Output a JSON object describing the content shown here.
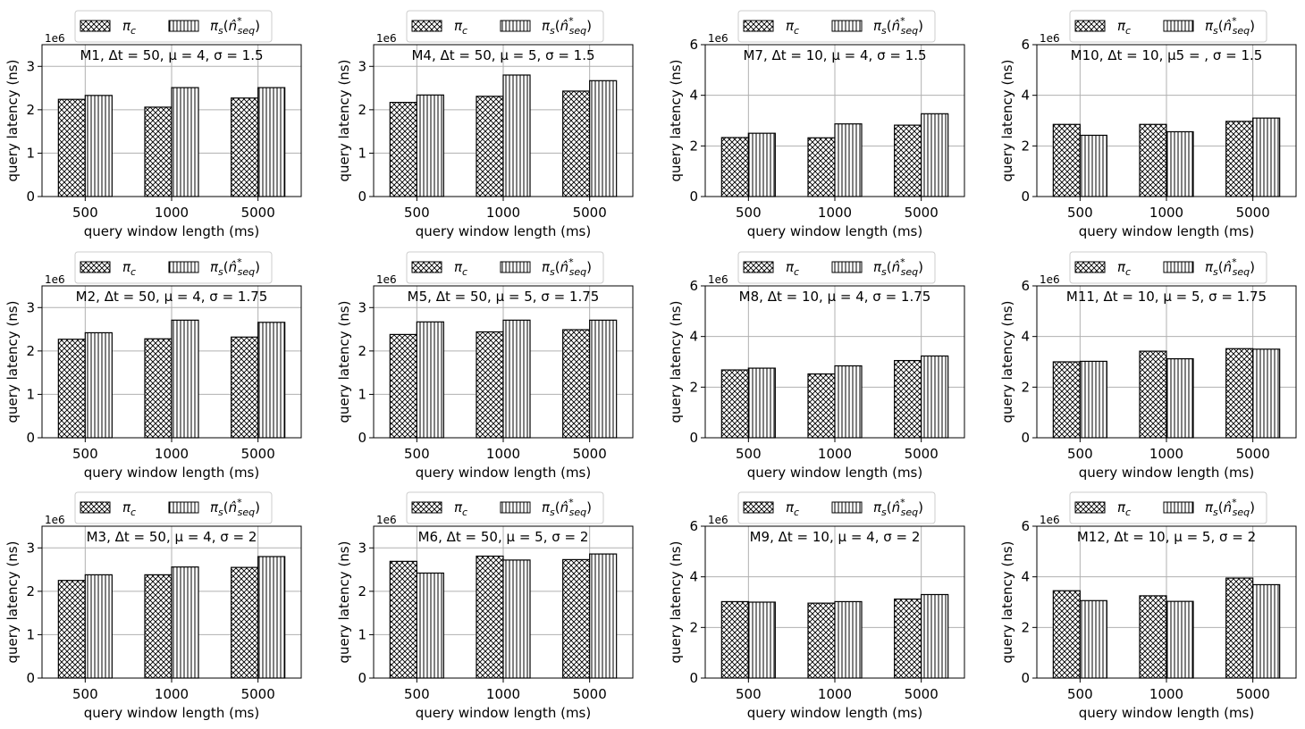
{
  "chart_data": [
    {
      "type": "bar",
      "title": "M1, Δt = 50, μ = 4, σ = 1.5",
      "xlabel": "query window length (ms)",
      "ylabel": "query latency (ns)",
      "scale_label": "1e6",
      "categories": [
        "500",
        "1000",
        "5000"
      ],
      "ylim": [
        0,
        3.5
      ],
      "yticks": [
        "0",
        "1",
        "2",
        "3"
      ],
      "series": [
        {
          "name": "πc",
          "values": [
            2.24,
            2.06,
            2.27
          ]
        },
        {
          "name": "πs(n̂*seq)",
          "values": [
            2.33,
            2.51,
            2.51
          ]
        }
      ]
    },
    {
      "type": "bar",
      "title": "M4, Δt = 50, μ = 5, σ = 1.5",
      "xlabel": "query window length (ms)",
      "ylabel": "query latency (ns)",
      "scale_label": "1e6",
      "categories": [
        "500",
        "1000",
        "5000"
      ],
      "ylim": [
        0,
        3.5
      ],
      "yticks": [
        "0",
        "1",
        "2",
        "3"
      ],
      "series": [
        {
          "name": "πc",
          "values": [
            2.17,
            2.31,
            2.43
          ]
        },
        {
          "name": "πs(n̂*seq)",
          "values": [
            2.34,
            2.8,
            2.67
          ]
        }
      ]
    },
    {
      "type": "bar",
      "title": "M7, Δt = 10, μ = 4, σ = 1.5",
      "xlabel": "query window length (ms)",
      "ylabel": "query latency (ns)",
      "scale_label": "1e6",
      "categories": [
        "500",
        "1000",
        "5000"
      ],
      "ylim": [
        0,
        6
      ],
      "yticks": [
        "0",
        "2",
        "4",
        "6"
      ],
      "series": [
        {
          "name": "πc",
          "values": [
            2.33,
            2.32,
            2.82
          ]
        },
        {
          "name": "πs(n̂*seq)",
          "values": [
            2.5,
            2.87,
            3.27
          ]
        }
      ]
    },
    {
      "type": "bar",
      "title": "M10, Δt = 10, μ5 = , σ = 1.5",
      "xlabel": "query window length (ms)",
      "ylabel": "query latency (ns)",
      "scale_label": "1e6",
      "categories": [
        "500",
        "1000",
        "5000"
      ],
      "ylim": [
        0,
        6
      ],
      "yticks": [
        "0",
        "2",
        "4",
        "6"
      ],
      "series": [
        {
          "name": "πc",
          "values": [
            2.85,
            2.85,
            2.97
          ]
        },
        {
          "name": "πs(n̂*seq)",
          "values": [
            2.42,
            2.56,
            3.1
          ]
        }
      ]
    },
    {
      "type": "bar",
      "title": "M2, Δt = 50, μ = 4, σ = 1.75",
      "xlabel": "query window length (ms)",
      "ylabel": "query latency (ns)",
      "scale_label": "1e6",
      "categories": [
        "500",
        "1000",
        "5000"
      ],
      "ylim": [
        0,
        3.5
      ],
      "yticks": [
        "0",
        "1",
        "2",
        "3"
      ],
      "series": [
        {
          "name": "πc",
          "values": [
            2.27,
            2.28,
            2.32
          ]
        },
        {
          "name": "πs(n̂*seq)",
          "values": [
            2.42,
            2.71,
            2.66
          ]
        }
      ]
    },
    {
      "type": "bar",
      "title": "M5, Δt = 50, μ = 5, σ = 1.75",
      "xlabel": "query window length (ms)",
      "ylabel": "query latency (ns)",
      "scale_label": "1e6",
      "categories": [
        "500",
        "1000",
        "5000"
      ],
      "ylim": [
        0,
        3.5
      ],
      "yticks": [
        "0",
        "1",
        "2",
        "3"
      ],
      "series": [
        {
          "name": "πc",
          "values": [
            2.38,
            2.44,
            2.49
          ]
        },
        {
          "name": "πs(n̂*seq)",
          "values": [
            2.67,
            2.71,
            2.71
          ]
        }
      ]
    },
    {
      "type": "bar",
      "title": "M8, Δt = 10, μ = 4, σ = 1.75",
      "xlabel": "query window length (ms)",
      "ylabel": "query latency (ns)",
      "scale_label": "1e6",
      "categories": [
        "500",
        "1000",
        "5000"
      ],
      "ylim": [
        0,
        6
      ],
      "yticks": [
        "0",
        "2",
        "4",
        "6"
      ],
      "series": [
        {
          "name": "πc",
          "values": [
            2.68,
            2.52,
            3.05
          ]
        },
        {
          "name": "πs(n̂*seq)",
          "values": [
            2.75,
            2.84,
            3.23
          ]
        }
      ]
    },
    {
      "type": "bar",
      "title": "M11, Δt = 10, μ = 5, σ = 1.75",
      "xlabel": "query window length (ms)",
      "ylabel": "query latency (ns)",
      "scale_label": "1e6",
      "categories": [
        "500",
        "1000",
        "5000"
      ],
      "ylim": [
        0,
        6
      ],
      "yticks": [
        "0",
        "2",
        "4",
        "6"
      ],
      "series": [
        {
          "name": "πc",
          "values": [
            3.0,
            3.42,
            3.52
          ]
        },
        {
          "name": "πs(n̂*seq)",
          "values": [
            3.02,
            3.12,
            3.5
          ]
        }
      ]
    },
    {
      "type": "bar",
      "title": "M3, Δt = 50, μ = 4, σ = 2",
      "xlabel": "query window length (ms)",
      "ylabel": "query latency (ns)",
      "scale_label": "1e6",
      "categories": [
        "500",
        "1000",
        "5000"
      ],
      "ylim": [
        0,
        3.5
      ],
      "yticks": [
        "0",
        "1",
        "2",
        "3"
      ],
      "series": [
        {
          "name": "πc",
          "values": [
            2.25,
            2.38,
            2.55
          ]
        },
        {
          "name": "πs(n̂*seq)",
          "values": [
            2.38,
            2.56,
            2.8
          ]
        }
      ]
    },
    {
      "type": "bar",
      "title": "M6, Δt = 50, μ = 5, σ = 2",
      "xlabel": "query window length (ms)",
      "ylabel": "query latency (ns)",
      "scale_label": "1e6",
      "categories": [
        "500",
        "1000",
        "5000"
      ],
      "ylim": [
        0,
        3.5
      ],
      "yticks": [
        "0",
        "1",
        "2",
        "3"
      ],
      "series": [
        {
          "name": "πc",
          "values": [
            2.69,
            2.81,
            2.73
          ]
        },
        {
          "name": "πs(n̂*seq)",
          "values": [
            2.42,
            2.72,
            2.86
          ]
        }
      ]
    },
    {
      "type": "bar",
      "title": "M9, Δt = 10, μ = 4, σ = 2",
      "xlabel": "query window length (ms)",
      "ylabel": "query latency (ns)",
      "scale_label": "1e6",
      "categories": [
        "500",
        "1000",
        "5000"
      ],
      "ylim": [
        0,
        6
      ],
      "yticks": [
        "0",
        "2",
        "4",
        "6"
      ],
      "series": [
        {
          "name": "πc",
          "values": [
            3.02,
            2.96,
            3.12
          ]
        },
        {
          "name": "πs(n̂*seq)",
          "values": [
            3.0,
            3.02,
            3.3
          ]
        }
      ]
    },
    {
      "type": "bar",
      "title": "M12, Δt = 10, μ = 5, σ = 2",
      "xlabel": "query window length (ms)",
      "ylabel": "query latency (ns)",
      "scale_label": "1e6",
      "categories": [
        "500",
        "1000",
        "5000"
      ],
      "ylim": [
        0,
        6
      ],
      "yticks": [
        "0",
        "2",
        "4",
        "6"
      ],
      "series": [
        {
          "name": "πc",
          "values": [
            3.45,
            3.25,
            3.95
          ]
        },
        {
          "name": "πs(n̂*seq)",
          "values": [
            3.06,
            3.03,
            3.69
          ]
        }
      ]
    }
  ]
}
